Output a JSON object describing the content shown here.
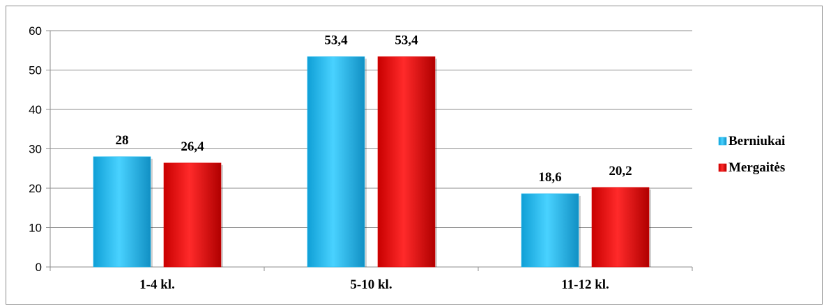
{
  "chart_data": {
    "type": "bar",
    "categories": [
      "1-4 kl.",
      "5-10 kl.",
      "11-12 kl."
    ],
    "series": [
      {
        "name": "Berniukai",
        "values": [
          28,
          53.4,
          18.6
        ],
        "labels": [
          "28",
          "53,4",
          "18,6"
        ],
        "color": "#1fb8ee"
      },
      {
        "name": "Mergaitės",
        "values": [
          26.4,
          53.4,
          20.2
        ],
        "labels": [
          "26,4",
          "53,4",
          "20,2"
        ],
        "color": "#e00000"
      }
    ],
    "ylim": [
      0,
      60
    ],
    "yticks": [
      "0",
      "10",
      "20",
      "30",
      "40",
      "50",
      "60"
    ],
    "grid": true,
    "legend_position": "right"
  }
}
